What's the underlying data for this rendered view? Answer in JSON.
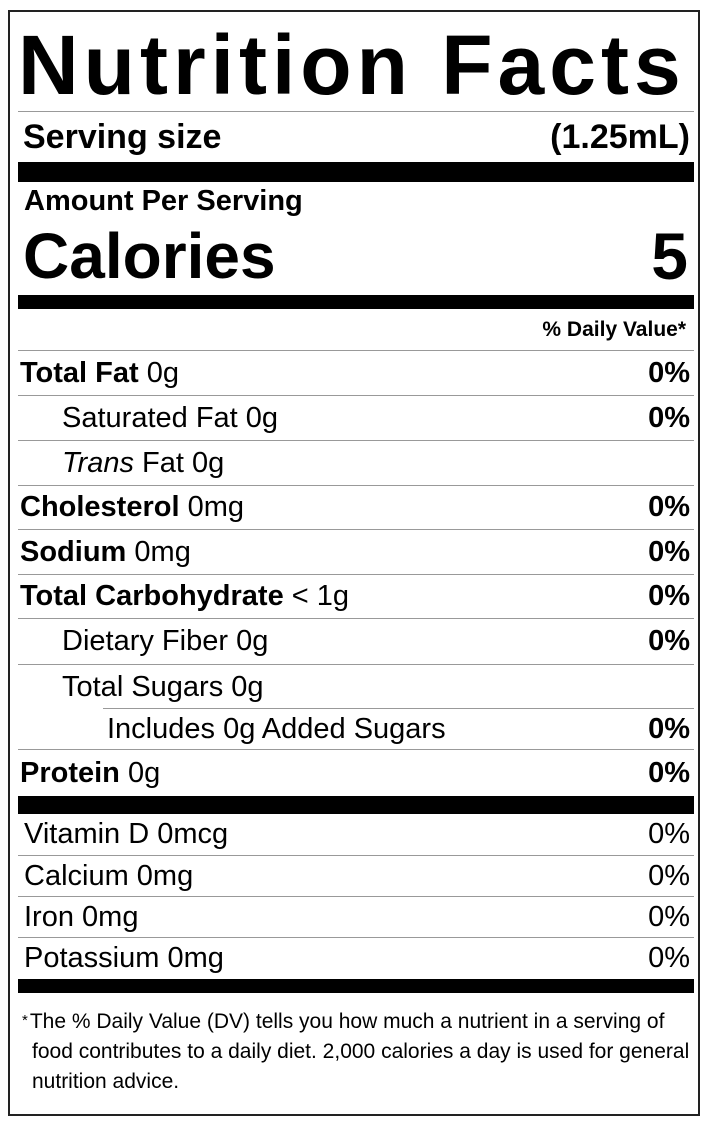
{
  "title": "Nutrition Facts",
  "serving": {
    "label": "Serving size",
    "value": "(1.25mL)"
  },
  "amount_per_serving": "Amount Per Serving",
  "calories": {
    "label": "Calories",
    "value": "5"
  },
  "dv_header": "% Daily Value*",
  "nutrients": [
    {
      "label": "Total Fat",
      "amount": "0g",
      "dv": "0%"
    },
    {
      "label": "Saturated Fat",
      "amount": "0g",
      "dv": "0%"
    },
    {
      "label_italic": "Trans",
      "label": "Fat",
      "amount": "0g"
    },
    {
      "label": "Cholesterol",
      "amount": "0mg",
      "dv": "0%"
    },
    {
      "label": "Sodium",
      "amount": "0mg",
      "dv": "0%"
    },
    {
      "label": "Total Carbohydrate",
      "amount": "< 1g",
      "dv": "0%"
    },
    {
      "label": "Dietary Fiber",
      "amount": "0g",
      "dv": "0%"
    },
    {
      "label": "Total Sugars",
      "amount": "0g"
    },
    {
      "label": "Includes 0g Added Sugars",
      "dv": "0%"
    },
    {
      "label": "Protein",
      "amount": "0g",
      "dv": "0%"
    }
  ],
  "vitamins": [
    {
      "label": "Vitamin D 0mcg",
      "dv": "0%"
    },
    {
      "label": "Calcium 0mg",
      "dv": "0%"
    },
    {
      "label": "Iron 0mg",
      "dv": "0%"
    },
    {
      "label": "Potassium 0mg",
      "dv": "0%"
    }
  ],
  "footnote": {
    "star": "*",
    "text": "The % Daily Value (DV) tells you how much a nutrient in a serving of food contributes to a daily diet. 2,000 calories a day is used for general nutrition advice."
  }
}
